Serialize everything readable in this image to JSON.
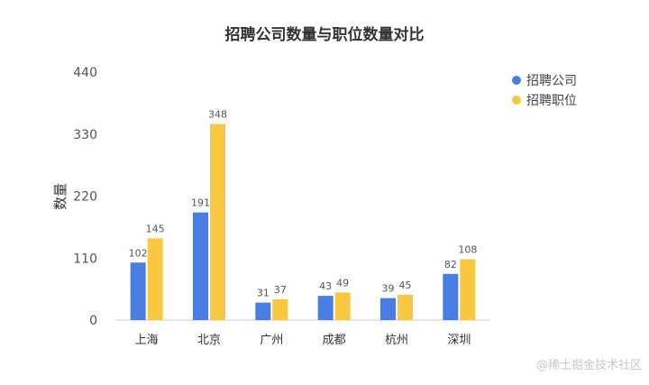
{
  "watermark": "@稀土掘金技术社区",
  "chart_data": {
    "type": "bar",
    "title": "招聘公司数量与职位数量对比",
    "xlabel": "",
    "ylabel": "数量",
    "categories": [
      "上海",
      "北京",
      "广州",
      "成都",
      "杭州",
      "深圳"
    ],
    "series": [
      {
        "name": "招聘公司",
        "values": [
          102,
          191,
          31,
          43,
          39,
          82
        ],
        "color": "#4a7de3"
      },
      {
        "name": "招聘职位",
        "values": [
          145,
          348,
          37,
          49,
          45,
          108
        ],
        "color": "#f9c843"
      }
    ],
    "yticks": [
      0,
      110,
      220,
      330,
      440
    ],
    "ylim": [
      0,
      440
    ],
    "grid": false,
    "legend_position": "top-right",
    "show_data_labels": true
  }
}
